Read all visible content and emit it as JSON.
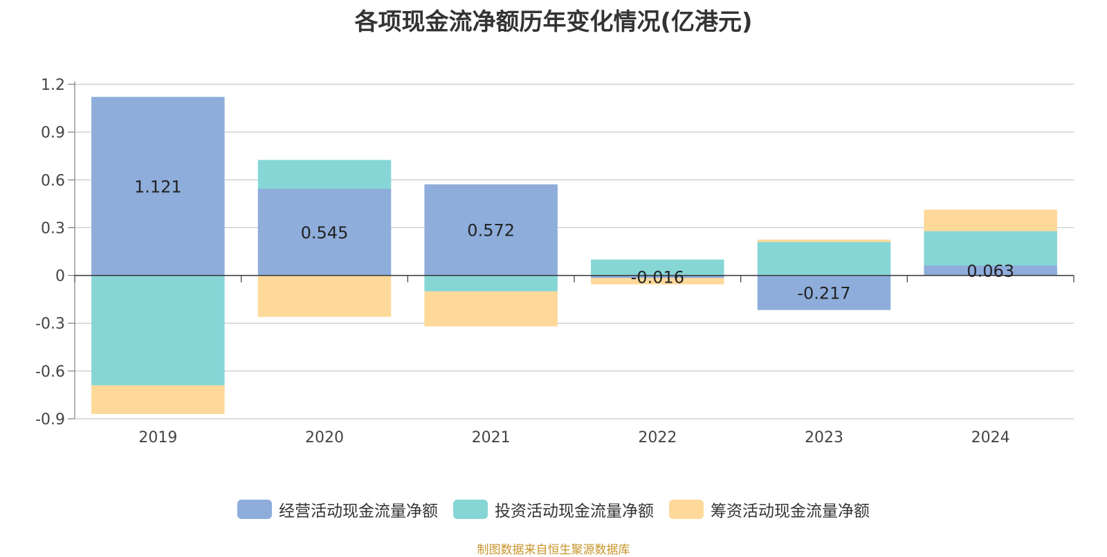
{
  "title": "各项现金流净额历年变化情况(亿港元)",
  "source_note": "制图数据来自恒生聚源数据库",
  "colors": {
    "operating": "#8eaddb",
    "investing": "#87d6d6",
    "financing": "#fed99a"
  },
  "chart_data": {
    "type": "bar",
    "stacked": true,
    "title": "各项现金流净额历年变化情况(亿港元)",
    "categories": [
      "2019",
      "2020",
      "2021",
      "2022",
      "2023",
      "2024"
    ],
    "series": [
      {
        "name": "经营活动现金流量净额",
        "color": "#8eaddb",
        "values": [
          1.121,
          0.545,
          0.572,
          -0.016,
          -0.217,
          0.063
        ],
        "labels": [
          "1.121",
          "0.545",
          "0.572",
          "-0.016",
          "-0.217",
          "0.063"
        ]
      },
      {
        "name": "投资活动现金流量净额",
        "color": "#87d6d6",
        "values": [
          -0.69,
          0.18,
          -0.1,
          0.1,
          0.21,
          0.215
        ]
      },
      {
        "name": "筹资活动现金流量净额",
        "color": "#fed99a",
        "values": [
          -0.18,
          -0.26,
          -0.22,
          -0.04,
          0.015,
          0.135
        ]
      }
    ],
    "yticks": [
      "1.2",
      "0.9",
      "0.6",
      "0.3",
      "0",
      "-0.3",
      "-0.6",
      "-0.9"
    ],
    "ylim": [
      -0.9,
      1.2
    ],
    "grid": true,
    "legend_position": "bottom"
  }
}
